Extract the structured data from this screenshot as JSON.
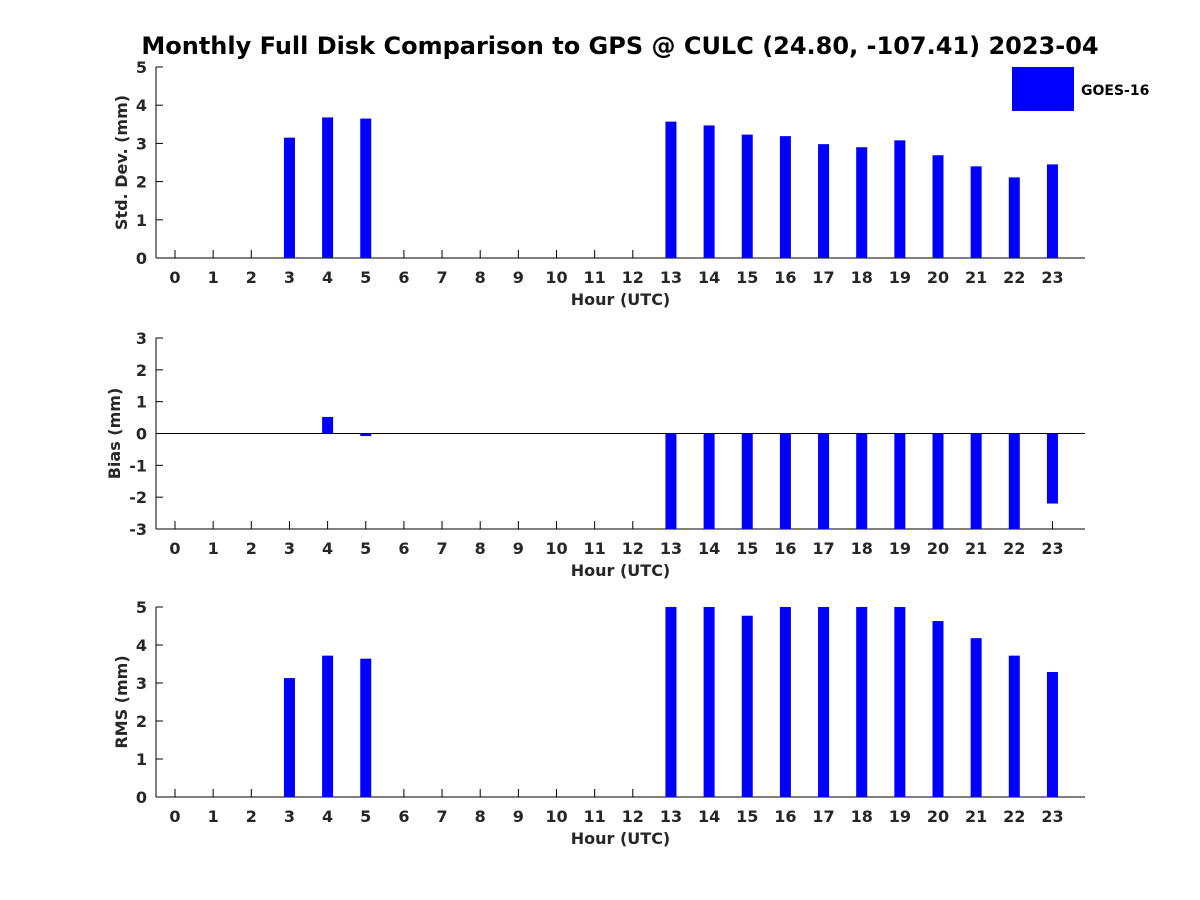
{
  "title": "Monthly Full Disk Comparison to GPS @ CULC (24.80, -107.41) 2023-04",
  "legend": {
    "label": "GOES-16",
    "placement": "top-right"
  },
  "colors": {
    "bar": "#0000ff",
    "axis": "#000000",
    "text": "#262626"
  },
  "chart_data": [
    {
      "type": "bar",
      "xlabel": "Hour (UTC)",
      "ylabel": "Std. Dev. (mm)",
      "ylim": [
        0,
        5
      ],
      "yticks": [
        "0",
        "1",
        "2",
        "3",
        "4",
        "5"
      ],
      "categories": [
        "0",
        "1",
        "2",
        "3",
        "4",
        "5",
        "6",
        "7",
        "8",
        "9",
        "10",
        "11",
        "12",
        "13",
        "14",
        "15",
        "16",
        "17",
        "18",
        "19",
        "20",
        "21",
        "22",
        "23"
      ],
      "series": [
        {
          "name": "GOES-16",
          "values": [
            null,
            null,
            null,
            3.15,
            3.68,
            3.65,
            null,
            null,
            null,
            null,
            null,
            null,
            null,
            3.57,
            3.47,
            3.23,
            3.19,
            2.98,
            2.9,
            3.08,
            2.69,
            2.4,
            2.11,
            2.45
          ]
        }
      ]
    },
    {
      "type": "bar",
      "xlabel": "Hour (UTC)",
      "ylabel": "Bias (mm)",
      "ylim": [
        -3,
        3
      ],
      "yticks": [
        "-3",
        "-2",
        "-1",
        "0",
        "1",
        "2",
        "3"
      ],
      "categories": [
        "0",
        "1",
        "2",
        "3",
        "4",
        "5",
        "6",
        "7",
        "8",
        "9",
        "10",
        "11",
        "12",
        "13",
        "14",
        "15",
        "16",
        "17",
        "18",
        "19",
        "20",
        "21",
        "22",
        "23"
      ],
      "series": [
        {
          "name": "GOES-16",
          "values": [
            null,
            null,
            null,
            null,
            0.52,
            -0.08,
            null,
            null,
            null,
            null,
            null,
            null,
            null,
            -3,
            -3,
            -3,
            -3,
            -3,
            -3,
            -3,
            -3,
            -3,
            -3,
            -2.2
          ]
        }
      ]
    },
    {
      "type": "bar",
      "xlabel": "Hour (UTC)",
      "ylabel": "RMS (mm)",
      "ylim": [
        0,
        5
      ],
      "yticks": [
        "0",
        "1",
        "2",
        "3",
        "4",
        "5"
      ],
      "categories": [
        "0",
        "1",
        "2",
        "3",
        "4",
        "5",
        "6",
        "7",
        "8",
        "9",
        "10",
        "11",
        "12",
        "13",
        "14",
        "15",
        "16",
        "17",
        "18",
        "19",
        "20",
        "21",
        "22",
        "23"
      ],
      "series": [
        {
          "name": "GOES-16",
          "values": [
            null,
            null,
            null,
            3.13,
            3.72,
            3.64,
            null,
            null,
            null,
            null,
            null,
            null,
            null,
            5,
            5,
            4.77,
            5,
            5,
            5,
            5,
            4.63,
            4.18,
            3.72,
            3.29
          ]
        }
      ]
    }
  ]
}
